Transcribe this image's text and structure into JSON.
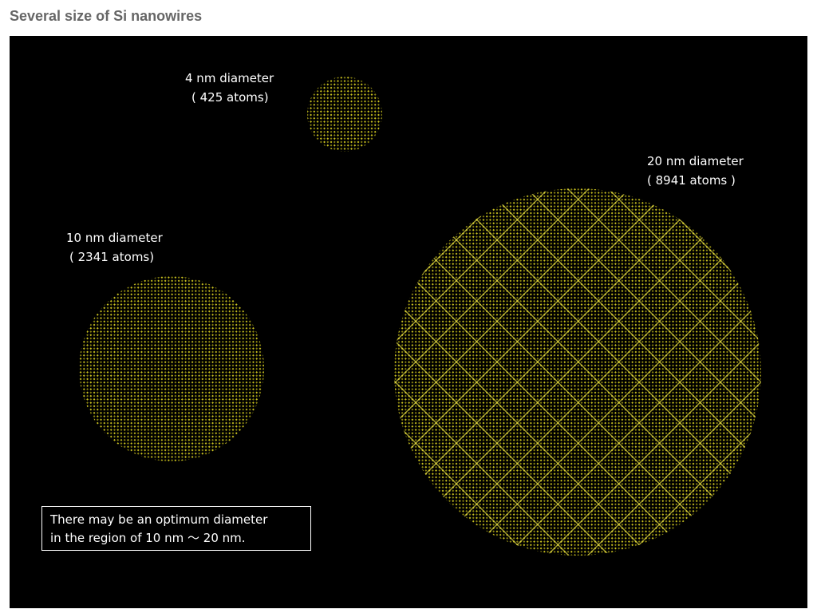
{
  "title": "Several size of Si nanowires",
  "wires": [
    {
      "label": "4 nm diameter",
      "atoms": "( 425 atoms)"
    },
    {
      "label": "10 nm diameter",
      "atoms": "( 2341 atoms)"
    },
    {
      "label": "20 nm diameter",
      "atoms": "( 8941 atoms )"
    }
  ],
  "note": {
    "line1": "There may be an optimum diameter",
    "line2": "in the region of 10 nm 〜 20 nm."
  },
  "colors": {
    "atom": "#d8d020",
    "background": "#000000",
    "title": "#666666"
  }
}
